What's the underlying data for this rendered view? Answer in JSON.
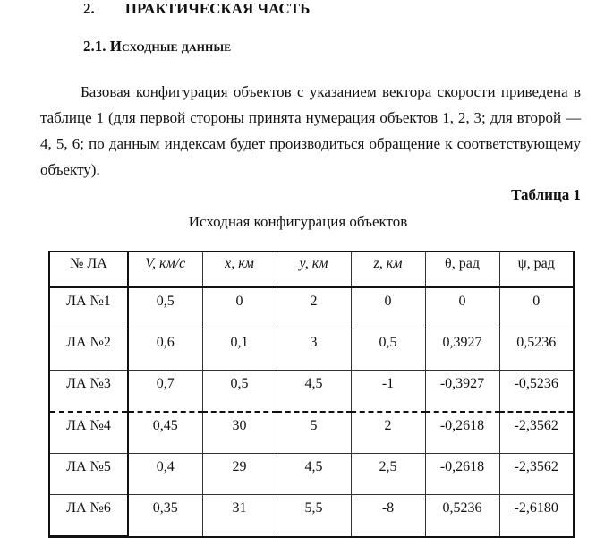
{
  "heading": "2.        ПРАКТИЧЕСКАЯ ЧАСТЬ",
  "subheading": "2.1.  Исходные данные",
  "paragraph": "Базовая конфигурация объектов с указанием вектора скорости приведена в таблице 1 (для первой стороны принята нумерация объектов 1, 2, 3; для второй — 4, 5, 6; по данным индексам будет производиться обращение к соответствующему объекту).",
  "table_label": "Таблица 1",
  "table_caption": "Исходная конфигурация объектов",
  "table": {
    "headers": [
      "№ ЛА",
      "V, км/с",
      "x, км",
      "y, км",
      "z, км",
      "θ, рад",
      "ψ, рад"
    ],
    "rows": [
      [
        "ЛА №1",
        "0,5",
        "0",
        "2",
        "0",
        "0",
        "0"
      ],
      [
        "ЛА №2",
        "0,6",
        "0,1",
        "3",
        "0,5",
        "0,3927",
        "0,5236"
      ],
      [
        "ЛА №3",
        "0,7",
        "0,5",
        "4,5",
        "-1",
        "-0,3927",
        "-0,5236"
      ],
      [
        "ЛА №4",
        "0,45",
        "30",
        "5",
        "2",
        "-0,2618",
        "-2,3562"
      ],
      [
        "ЛА №5",
        "0,4",
        "29",
        "4,5",
        "2,5",
        "-0,2618",
        "-2,3562"
      ],
      [
        "ЛА №6",
        "0,35",
        "31",
        "5,5",
        "-8",
        "0,5236",
        "-2,6180"
      ]
    ]
  }
}
